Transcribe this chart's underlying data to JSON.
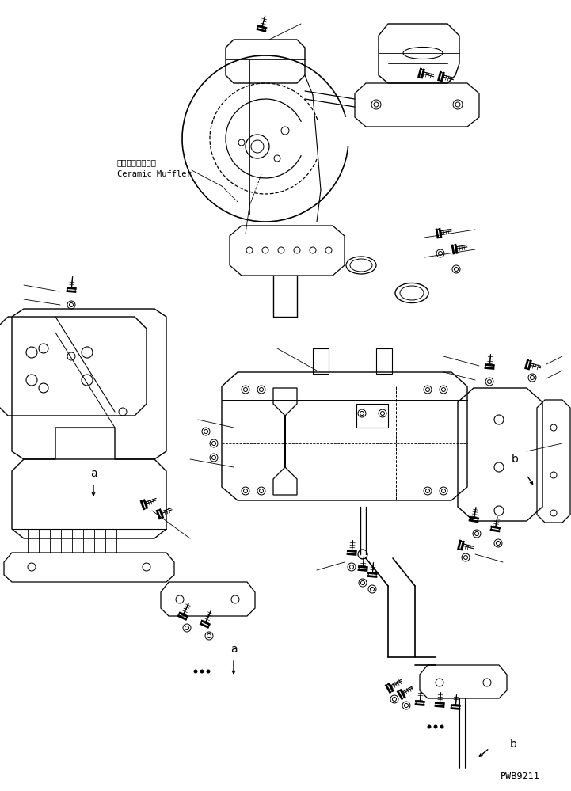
{
  "background_color": "#ffffff",
  "line_color": "#000000",
  "part_code": "PWB9211",
  "label_ceramic_jp": "セラミックマフラ",
  "label_ceramic_en": "Ceramic Muffler",
  "label_a": "a",
  "label_b": "b",
  "figsize": [
    7.21,
    9.99
  ],
  "dpi": 100
}
